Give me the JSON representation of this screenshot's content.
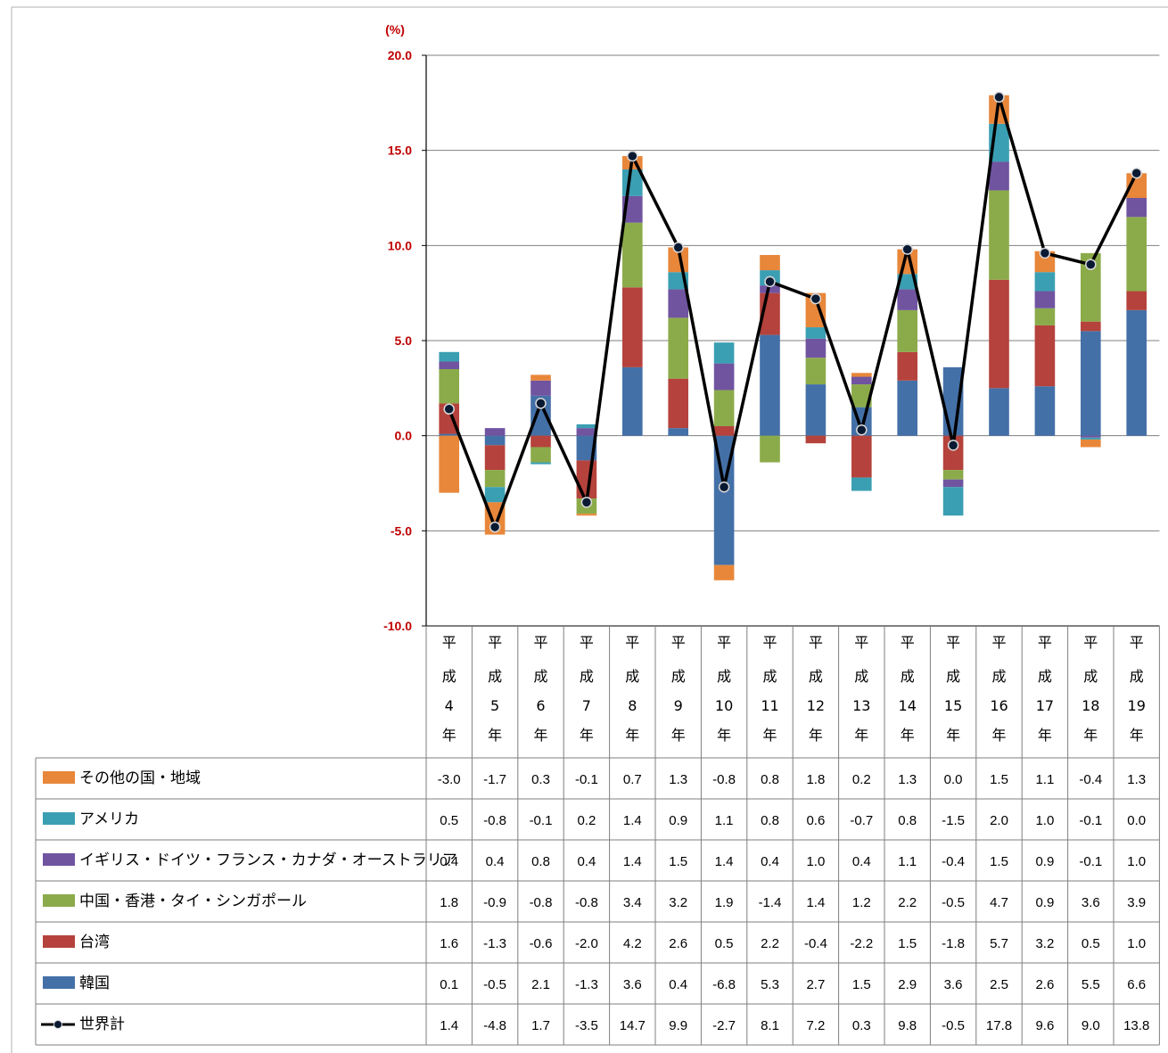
{
  "chart_data": {
    "type": "stacked-bar-with-line",
    "unit_label": "(%)",
    "ylim": [
      -10,
      20
    ],
    "yticks": [
      "20.0",
      "15.0",
      "10.0",
      "5.0",
      "0.0",
      "-5.0",
      "-10.0"
    ],
    "grid": true,
    "legend": "table-left",
    "categories": [
      {
        "era": "平",
        "era2": "成",
        "num": "4",
        "suffix": "年"
      },
      {
        "era": "平",
        "era2": "成",
        "num": "5",
        "suffix": "年"
      },
      {
        "era": "平",
        "era2": "成",
        "num": "6",
        "suffix": "年"
      },
      {
        "era": "平",
        "era2": "成",
        "num": "7",
        "suffix": "年"
      },
      {
        "era": "平",
        "era2": "成",
        "num": "8",
        "suffix": "年"
      },
      {
        "era": "平",
        "era2": "成",
        "num": "9",
        "suffix": "年"
      },
      {
        "era": "平",
        "era2": "成",
        "num": "10",
        "suffix": "年"
      },
      {
        "era": "平",
        "era2": "成",
        "num": "11",
        "suffix": "年"
      },
      {
        "era": "平",
        "era2": "成",
        "num": "12",
        "suffix": "年"
      },
      {
        "era": "平",
        "era2": "成",
        "num": "13",
        "suffix": "年"
      },
      {
        "era": "平",
        "era2": "成",
        "num": "14",
        "suffix": "年"
      },
      {
        "era": "平",
        "era2": "成",
        "num": "15",
        "suffix": "年"
      },
      {
        "era": "平",
        "era2": "成",
        "num": "16",
        "suffix": "年"
      },
      {
        "era": "平",
        "era2": "成",
        "num": "17",
        "suffix": "年"
      },
      {
        "era": "平",
        "era2": "成",
        "num": "18",
        "suffix": "年"
      },
      {
        "era": "平",
        "era2": "成",
        "num": "19",
        "suffix": "年"
      }
    ],
    "series": [
      {
        "name": "その他の国・地域",
        "color": "#e8873a",
        "labels": [
          "-3.0",
          "-1.7",
          "0.3",
          "-0.1",
          "0.7",
          "1.3",
          "-0.8",
          "0.8",
          "1.8",
          "0.2",
          "1.3",
          "0.0",
          "1.5",
          "1.1",
          "-0.4",
          "1.3"
        ],
        "values": [
          -3.0,
          -1.7,
          0.3,
          -0.1,
          0.7,
          1.3,
          -0.8,
          0.8,
          1.8,
          0.2,
          1.3,
          0.0,
          1.5,
          1.1,
          -0.4,
          1.3
        ]
      },
      {
        "name": "アメリカ",
        "color": "#3b9fb3",
        "labels": [
          "0.5",
          "-0.8",
          "-0.1",
          "0.2",
          "1.4",
          "0.9",
          "1.1",
          "0.8",
          "0.6",
          "-0.7",
          "0.8",
          "-1.5",
          "2.0",
          "1.0",
          "-0.1",
          "0.0"
        ],
        "values": [
          0.5,
          -0.8,
          -0.1,
          0.2,
          1.4,
          0.9,
          1.1,
          0.8,
          0.6,
          -0.7,
          0.8,
          -1.5,
          2.0,
          1.0,
          -0.1,
          0.0
        ]
      },
      {
        "name": "イギリス・ドイツ・フランス・カナダ・オーストラリア",
        "color": "#7054a0",
        "labels": [
          "0.4",
          "0.4",
          "0.8",
          "0.4",
          "1.4",
          "1.5",
          "1.4",
          "0.4",
          "1.0",
          "0.4",
          "1.1",
          "-0.4",
          "1.5",
          "0.9",
          "-0.1",
          "1.0"
        ],
        "values": [
          0.4,
          0.4,
          0.8,
          0.4,
          1.4,
          1.5,
          1.4,
          0.4,
          1.0,
          0.4,
          1.1,
          -0.4,
          1.5,
          0.9,
          -0.1,
          1.0
        ]
      },
      {
        "name": "中国・香港・タイ・シンガポール",
        "color": "#8bab4a",
        "labels": [
          "1.8",
          "-0.9",
          "-0.8",
          "-0.8",
          "3.4",
          "3.2",
          "1.9",
          "-1.4",
          "1.4",
          "1.2",
          "2.2",
          "-0.5",
          "4.7",
          "0.9",
          "3.6",
          "3.9"
        ],
        "values": [
          1.8,
          -0.9,
          -0.8,
          -0.8,
          3.4,
          3.2,
          1.9,
          -1.4,
          1.4,
          1.2,
          2.2,
          -0.5,
          4.7,
          0.9,
          3.6,
          3.9
        ]
      },
      {
        "name": "台湾",
        "color": "#b5423c",
        "labels": [
          "1.6",
          "-1.3",
          "-0.6",
          "-2.0",
          "4.2",
          "2.6",
          "0.5",
          "2.2",
          "-0.4",
          "-2.2",
          "1.5",
          "-1.8",
          "5.7",
          "3.2",
          "0.5",
          "1.0"
        ],
        "values": [
          1.6,
          -1.3,
          -0.6,
          -2.0,
          4.2,
          2.6,
          0.5,
          2.2,
          -0.4,
          -2.2,
          1.5,
          -1.8,
          5.7,
          3.2,
          0.5,
          1.0
        ]
      },
      {
        "name": "韓国",
        "color": "#4470a8",
        "labels": [
          "0.1",
          "-0.5",
          "2.1",
          "-1.3",
          "3.6",
          "0.4",
          "-6.8",
          "5.3",
          "2.7",
          "1.5",
          "2.9",
          "3.6",
          "2.5",
          "2.6",
          "5.5",
          "6.6"
        ],
        "values": [
          0.1,
          -0.5,
          2.1,
          -1.3,
          3.6,
          0.4,
          -6.8,
          5.3,
          2.7,
          1.5,
          2.9,
          3.6,
          2.5,
          2.6,
          5.5,
          6.6
        ]
      }
    ],
    "line": {
      "name": "世界計",
      "color": "#000000",
      "labels": [
        "1.4",
        "-4.8",
        "1.7",
        "-3.5",
        "14.7",
        "9.9",
        "-2.7",
        "8.1",
        "7.2",
        "0.3",
        "9.8",
        "-0.5",
        "17.8",
        "9.6",
        "9.0",
        "13.8"
      ],
      "values": [
        1.4,
        -4.8,
        1.7,
        -3.5,
        14.7,
        9.9,
        -2.7,
        8.1,
        7.2,
        0.3,
        9.8,
        -0.5,
        17.8,
        9.6,
        9.0,
        13.8
      ]
    }
  }
}
